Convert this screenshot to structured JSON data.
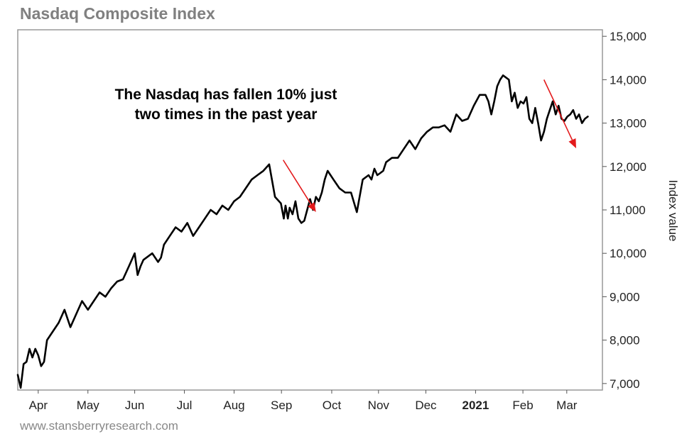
{
  "chart_data": {
    "type": "line",
    "title": "Nasdaq Composite Index",
    "ylabel": "Index value",
    "xlabel": "",
    "ylim": [
      6850,
      15150
    ],
    "yticks": [
      7000,
      8000,
      9000,
      10000,
      11000,
      12000,
      13000,
      14000,
      15000
    ],
    "ytick_labels": [
      "7,000",
      "8,000",
      "9,000",
      "10,000",
      "11,000",
      "12,000",
      "13,000",
      "14,000",
      "15,000"
    ],
    "x_range": [
      0,
      1
    ],
    "x_ticks": [
      {
        "label": "Apr",
        "x": 0.035,
        "bold": false
      },
      {
        "label": "May",
        "x": 0.12,
        "bold": false
      },
      {
        "label": "Jun",
        "x": 0.2,
        "bold": false
      },
      {
        "label": "Jul",
        "x": 0.285,
        "bold": false
      },
      {
        "label": "Aug",
        "x": 0.37,
        "bold": false
      },
      {
        "label": "Sep",
        "x": 0.451,
        "bold": false
      },
      {
        "label": "Oct",
        "x": 0.537,
        "bold": false
      },
      {
        "label": "Nov",
        "x": 0.617,
        "bold": false
      },
      {
        "label": "Dec",
        "x": 0.698,
        "bold": false
      },
      {
        "label": "2021",
        "x": 0.783,
        "bold": true
      },
      {
        "label": "Feb",
        "x": 0.864,
        "bold": false
      },
      {
        "label": "Mar",
        "x": 0.939,
        "bold": false
      }
    ],
    "x": [
      0.0,
      0.005,
      0.01,
      0.015,
      0.02,
      0.025,
      0.03,
      0.035,
      0.04,
      0.045,
      0.05,
      0.06,
      0.07,
      0.08,
      0.09,
      0.1,
      0.11,
      0.12,
      0.13,
      0.14,
      0.15,
      0.16,
      0.17,
      0.18,
      0.19,
      0.2,
      0.205,
      0.21,
      0.215,
      0.22,
      0.23,
      0.24,
      0.245,
      0.25,
      0.26,
      0.27,
      0.28,
      0.29,
      0.3,
      0.31,
      0.32,
      0.33,
      0.34,
      0.35,
      0.36,
      0.37,
      0.38,
      0.39,
      0.4,
      0.41,
      0.42,
      0.43,
      0.44,
      0.45,
      0.455,
      0.458,
      0.462,
      0.465,
      0.47,
      0.475,
      0.48,
      0.485,
      0.49,
      0.495,
      0.5,
      0.505,
      0.51,
      0.515,
      0.52,
      0.525,
      0.53,
      0.54,
      0.55,
      0.56,
      0.57,
      0.58,
      0.59,
      0.6,
      0.605,
      0.61,
      0.615,
      0.62,
      0.625,
      0.63,
      0.64,
      0.65,
      0.66,
      0.67,
      0.68,
      0.69,
      0.7,
      0.71,
      0.72,
      0.73,
      0.74,
      0.75,
      0.76,
      0.77,
      0.78,
      0.79,
      0.8,
      0.805,
      0.81,
      0.815,
      0.82,
      0.825,
      0.83,
      0.835,
      0.84,
      0.845,
      0.85,
      0.855,
      0.86,
      0.865,
      0.87,
      0.875,
      0.88,
      0.885,
      0.89,
      0.895,
      0.9,
      0.905,
      0.91,
      0.915,
      0.92,
      0.925,
      0.93,
      0.935,
      0.94,
      0.945,
      0.95,
      0.955,
      0.96,
      0.965,
      0.97,
      0.975
    ],
    "series": [
      {
        "values": [
          7200,
          6900,
          7450,
          7500,
          7800,
          7600,
          7800,
          7650,
          7400,
          7500,
          8000,
          8200,
          8400,
          8700,
          8300,
          8600,
          8900,
          8700,
          8900,
          9100,
          9000,
          9200,
          9350,
          9400,
          9700,
          10000,
          9500,
          9700,
          9850,
          9900,
          10000,
          9800,
          9900,
          10200,
          10400,
          10600,
          10500,
          10700,
          10400,
          10600,
          10800,
          11000,
          10900,
          11100,
          11000,
          11200,
          11300,
          11500,
          11700,
          11800,
          11900,
          12050,
          11300,
          11150,
          10800,
          11100,
          10800,
          11050,
          10900,
          11200,
          10800,
          10700,
          10750,
          11000,
          11250,
          11000,
          11300,
          11200,
          11400,
          11700,
          11900,
          11700,
          11500,
          11400,
          11400,
          10950,
          11700,
          11800,
          11700,
          11950,
          11800,
          11850,
          11900,
          12100,
          12200,
          12200,
          12400,
          12600,
          12400,
          12650,
          12800,
          12900,
          12900,
          12950,
          12800,
          13200,
          13050,
          13100,
          13400,
          13650,
          13650,
          13500,
          13200,
          13500,
          13850,
          14000,
          14100,
          14050,
          14000,
          13500,
          13700,
          13350,
          13500,
          13450,
          13600,
          13100,
          13000,
          13350,
          13000,
          12600,
          12800,
          13100,
          13300,
          13500,
          13200,
          13400,
          13100,
          13050,
          13150,
          13200,
          13300,
          13100,
          13200,
          13000,
          13100,
          13150
        ]
      }
    ],
    "annotations": {
      "text_lines": [
        "The Nasdaq has fallen 10% just",
        "two times in the past year"
      ],
      "arrows": [
        {
          "from": [
            0.454,
            12150
          ],
          "to": [
            0.51,
            10950
          ],
          "color": "#e31a1c"
        },
        {
          "from": [
            0.9,
            14000
          ],
          "to": [
            0.955,
            12420
          ],
          "color": "#e31a1c"
        }
      ]
    },
    "grid": false,
    "legend": "none",
    "line_color": "#000000",
    "source": "www.stansberryresearch.com"
  }
}
